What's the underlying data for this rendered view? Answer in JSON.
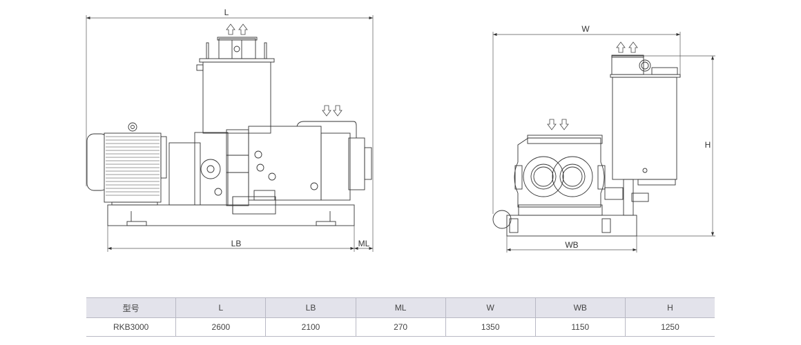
{
  "drawing": {
    "side_view": {
      "dim_L": "L",
      "dim_LB": "LB",
      "dim_ML": "ML"
    },
    "end_view": {
      "dim_W": "W",
      "dim_WB": "WB",
      "dim_H": "H"
    },
    "line_color": "#333333"
  },
  "table": {
    "headers": [
      "型号",
      "L",
      "LB",
      "ML",
      "W",
      "WB",
      "H"
    ],
    "rows": [
      [
        "RKB3000",
        "2600",
        "2100",
        "270",
        "1350",
        "1150",
        "1250"
      ]
    ],
    "header_bg": "#e3e3eb"
  }
}
